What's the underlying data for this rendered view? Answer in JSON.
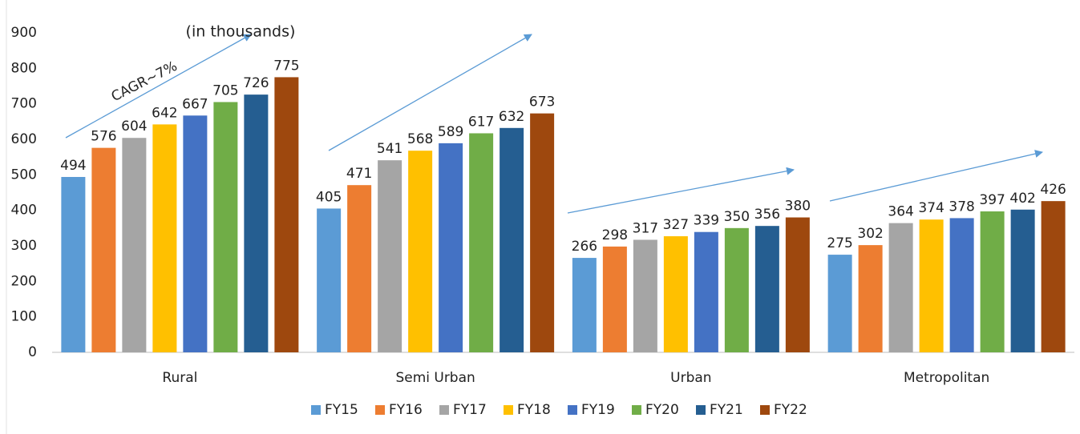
{
  "chart_data": {
    "type": "bar",
    "annotations": [
      "(in thousands)",
      "CAGR~7%"
    ],
    "categories": [
      "Rural",
      "Semi Urban",
      "Urban",
      "Metropolitan"
    ],
    "series": [
      {
        "name": "FY15",
        "color": "#5b9bd5",
        "values": [
          494,
          405,
          266,
          275
        ]
      },
      {
        "name": "FY16",
        "color": "#ed7d31",
        "values": [
          576,
          471,
          298,
          302
        ]
      },
      {
        "name": "FY17",
        "color": "#a5a5a5",
        "values": [
          604,
          541,
          317,
          364
        ]
      },
      {
        "name": "FY18",
        "color": "#ffc000",
        "values": [
          642,
          568,
          327,
          374
        ]
      },
      {
        "name": "FY19",
        "color": "#4472c4",
        "values": [
          667,
          589,
          339,
          378
        ]
      },
      {
        "name": "FY20",
        "color": "#70ad47",
        "values": [
          705,
          617,
          350,
          397
        ]
      },
      {
        "name": "FY21",
        "color": "#255e91",
        "values": [
          726,
          632,
          356,
          402
        ]
      },
      {
        "name": "FY22",
        "color": "#9e480e",
        "values": [
          775,
          673,
          380,
          426
        ]
      }
    ],
    "ylim": [
      0,
      900
    ],
    "yticks": [
      0,
      100,
      200,
      300,
      400,
      500,
      600,
      700,
      800,
      900
    ],
    "grid": false,
    "legend": "bottom"
  }
}
